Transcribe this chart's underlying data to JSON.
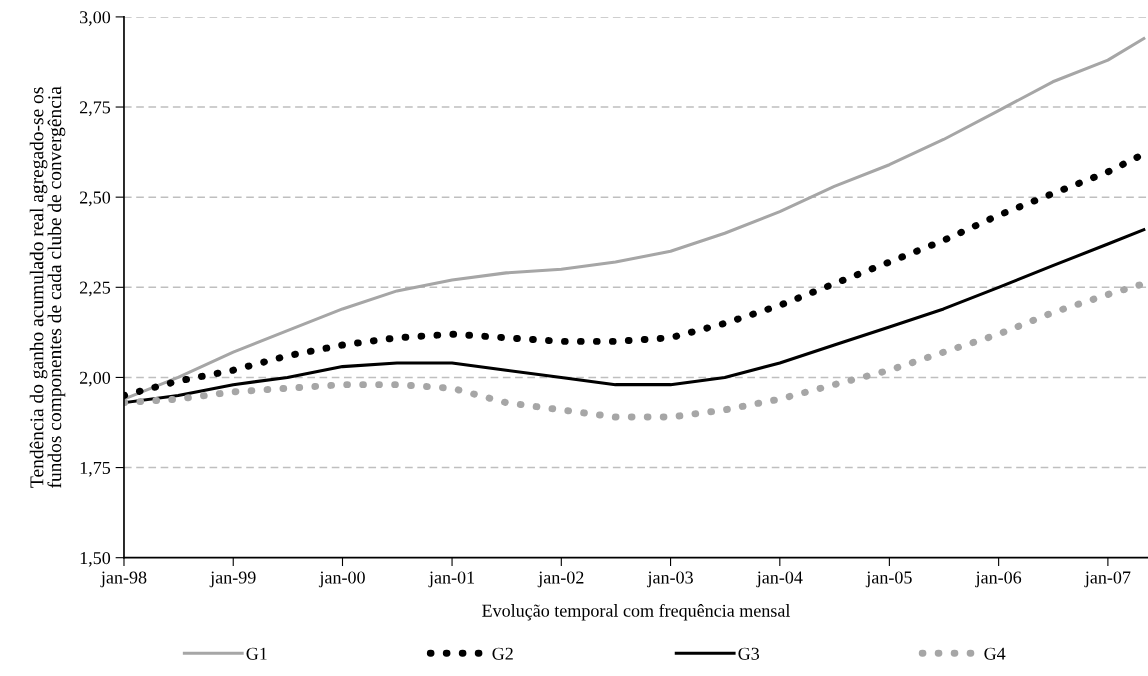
{
  "chart_data": {
    "type": "line",
    "xlabel": "Evolução temporal com frequência mensal",
    "ylabel": "Tendência do ganho acumulado real agregado-se os\nfundos componentes de cada clube de convergência",
    "x": [
      "1998-01",
      "1998-07",
      "1999-01",
      "1999-07",
      "2000-01",
      "2000-07",
      "2001-01",
      "2001-07",
      "2002-01",
      "2002-07",
      "2003-01",
      "2003-07",
      "2004-01",
      "2004-07",
      "2005-01",
      "2005-07",
      "2006-01",
      "2006-07",
      "2007-01",
      "2007-05"
    ],
    "series": [
      {
        "name": "G1",
        "color": "#a6a6a6",
        "line_style": "solid",
        "values": [
          1.94,
          2.0,
          2.07,
          2.13,
          2.19,
          2.24,
          2.27,
          2.29,
          2.3,
          2.32,
          2.35,
          2.4,
          2.46,
          2.53,
          2.59,
          2.66,
          2.74,
          2.82,
          2.88,
          2.94
        ]
      },
      {
        "name": "G2",
        "color": "#000000",
        "line_style": "dotted",
        "values": [
          1.95,
          1.99,
          2.02,
          2.06,
          2.09,
          2.11,
          2.12,
          2.11,
          2.1,
          2.1,
          2.11,
          2.15,
          2.2,
          2.26,
          2.32,
          2.38,
          2.45,
          2.51,
          2.57,
          2.62
        ]
      },
      {
        "name": "G3",
        "color": "#000000",
        "line_style": "solid",
        "values": [
          1.93,
          1.95,
          1.98,
          2.0,
          2.03,
          2.04,
          2.04,
          2.02,
          2.0,
          1.98,
          1.98,
          2.0,
          2.04,
          2.09,
          2.14,
          2.19,
          2.25,
          2.31,
          2.37,
          2.41
        ]
      },
      {
        "name": "G4",
        "color": "#a6a6a6",
        "line_style": "dotted",
        "values": [
          1.93,
          1.94,
          1.96,
          1.97,
          1.98,
          1.98,
          1.97,
          1.93,
          1.91,
          1.89,
          1.89,
          1.91,
          1.94,
          1.98,
          2.02,
          2.07,
          2.12,
          2.18,
          2.23,
          2.26
        ]
      }
    ],
    "xlim": [
      "1998-01",
      "2007-05-15"
    ],
    "xticks": [
      {
        "value": "1998-01",
        "label": "jan-98"
      },
      {
        "value": "1999-01",
        "label": "jan-99"
      },
      {
        "value": "2000-01",
        "label": "jan-00"
      },
      {
        "value": "2001-01",
        "label": "jan-01"
      },
      {
        "value": "2002-01",
        "label": "jan-02"
      },
      {
        "value": "2003-01",
        "label": "jan-03"
      },
      {
        "value": "2004-01",
        "label": "jan-04"
      },
      {
        "value": "2005-01",
        "label": "jan-05"
      },
      {
        "value": "2006-01",
        "label": "jan-06"
      },
      {
        "value": "2007-01",
        "label": "jan-07"
      }
    ],
    "ylim": [
      1.5,
      3.0
    ],
    "yticks": [
      {
        "value": 1.5,
        "label": "1,50"
      },
      {
        "value": 1.75,
        "label": "1,75"
      },
      {
        "value": 2.0,
        "label": "2,00"
      },
      {
        "value": 2.25,
        "label": "2,25"
      },
      {
        "value": 2.5,
        "label": "2,50"
      },
      {
        "value": 2.75,
        "label": "2,75"
      },
      {
        "value": 3.0,
        "label": "3,00"
      }
    ],
    "grid": "y",
    "legend": "bottom",
    "marker": "none"
  }
}
